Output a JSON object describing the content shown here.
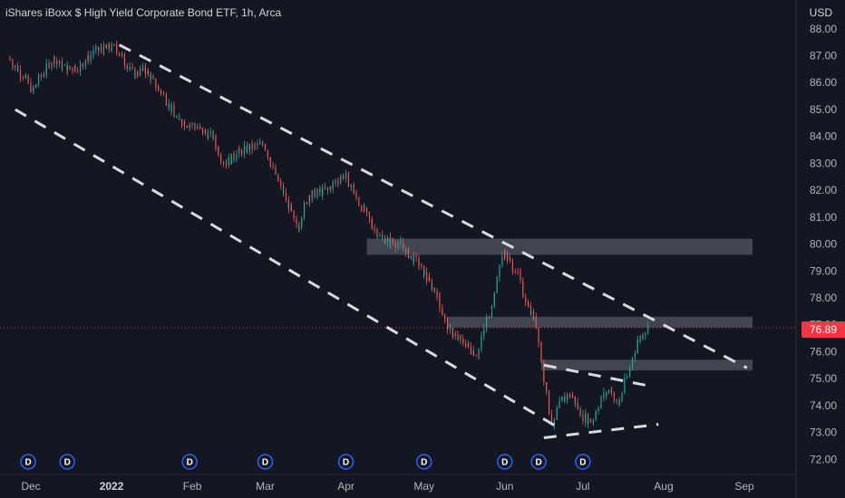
{
  "header": {
    "title": "iShares iBoxx $ High Yield Corporate Bond ETF, 1h, Arca",
    "currency": "USD"
  },
  "price_label": "76.89",
  "colors": {
    "background": "#131722",
    "up": "#26a69a",
    "down": "#ef5350",
    "zone": "#4a4d58",
    "trendline": "#d9dadf",
    "dividend": "#2962ff",
    "last_price": "#f23645"
  },
  "chart_data": {
    "type": "candlestick",
    "y_axis": {
      "range": [
        71.6,
        88.4
      ],
      "ticks": [
        "72.00",
        "73.00",
        "74.00",
        "75.00",
        "76.00",
        "77.00",
        "78.00",
        "79.00",
        "80.00",
        "81.00",
        "82.00",
        "83.00",
        "84.00",
        "85.00",
        "86.00",
        "87.00",
        "88.00"
      ]
    },
    "x_axis": {
      "ticks": [
        {
          "label": "Dec",
          "date": "2021-12-01",
          "bold": false
        },
        {
          "label": "2022",
          "date": "2022-01-01",
          "bold": true
        },
        {
          "label": "Feb",
          "date": "2022-02-01",
          "bold": false
        },
        {
          "label": "Mar",
          "date": "2022-03-01",
          "bold": false
        },
        {
          "label": "Apr",
          "date": "2022-04-01",
          "bold": false
        },
        {
          "label": "May",
          "date": "2022-05-01",
          "bold": false
        },
        {
          "label": "Jun",
          "date": "2022-06-01",
          "bold": false
        },
        {
          "label": "Jul",
          "date": "2022-07-01",
          "bold": false
        },
        {
          "label": "Aug",
          "date": "2022-08-01",
          "bold": false
        },
        {
          "label": "Sep",
          "date": "2022-09-01",
          "bold": false
        }
      ]
    },
    "last_price": 76.89,
    "price_path": [
      [
        "2021-11-23",
        86.9
      ],
      [
        "2021-11-29",
        86.2
      ],
      [
        "2021-12-02",
        85.7
      ],
      [
        "2021-12-06",
        86.3
      ],
      [
        "2021-12-10",
        86.9
      ],
      [
        "2021-12-15",
        86.5
      ],
      [
        "2021-12-20",
        86.6
      ],
      [
        "2021-12-27",
        87.2
      ],
      [
        "2022-01-03",
        87.3
      ],
      [
        "2022-01-10",
        86.3
      ],
      [
        "2022-01-14",
        86.5
      ],
      [
        "2022-01-21",
        85.6
      ],
      [
        "2022-01-27",
        84.6
      ],
      [
        "2022-02-02",
        84.4
      ],
      [
        "2022-02-09",
        84.0
      ],
      [
        "2022-02-14",
        83.0
      ],
      [
        "2022-02-21",
        83.5
      ],
      [
        "2022-03-01",
        83.7
      ],
      [
        "2022-03-07",
        82.2
      ],
      [
        "2022-03-14",
        80.6
      ],
      [
        "2022-03-18",
        81.8
      ],
      [
        "2022-03-25",
        82.0
      ],
      [
        "2022-04-01",
        82.6
      ],
      [
        "2022-04-08",
        81.3
      ],
      [
        "2022-04-15",
        80.2
      ],
      [
        "2022-04-22",
        80.0
      ],
      [
        "2022-04-29",
        79.3
      ],
      [
        "2022-05-06",
        78.2
      ],
      [
        "2022-05-11",
        76.8
      ],
      [
        "2022-05-17",
        76.3
      ],
      [
        "2022-05-22",
        75.9
      ],
      [
        "2022-05-27",
        77.6
      ],
      [
        "2022-06-01",
        79.7
      ],
      [
        "2022-06-06",
        79.0
      ],
      [
        "2022-06-10",
        77.8
      ],
      [
        "2022-06-14",
        76.9
      ],
      [
        "2022-06-16",
        75.3
      ],
      [
        "2022-06-20",
        73.2
      ],
      [
        "2022-06-23",
        74.2
      ],
      [
        "2022-06-27",
        74.4
      ],
      [
        "2022-07-01",
        73.6
      ],
      [
        "2022-07-05",
        73.4
      ],
      [
        "2022-07-08",
        74.2
      ],
      [
        "2022-07-12",
        74.6
      ],
      [
        "2022-07-15",
        74.0
      ],
      [
        "2022-07-19",
        75.2
      ],
      [
        "2022-07-22",
        76.3
      ],
      [
        "2022-07-26",
        76.89
      ]
    ],
    "zones": [
      {
        "from": "2022-04-09",
        "to": "2022-09-05",
        "low": 79.6,
        "high": 80.2
      },
      {
        "from": "2022-05-10",
        "to": "2022-09-05",
        "low": 76.9,
        "high": 77.3
      },
      {
        "from": "2022-06-15",
        "to": "2022-09-06",
        "low": 75.3,
        "high": 75.7
      }
    ],
    "trendlines": [
      {
        "from": [
          "2022-01-04",
          87.4
        ],
        "to": [
          "2022-09-02",
          75.4
        ]
      },
      {
        "from": [
          "2021-11-25",
          85.0
        ],
        "to": [
          "2022-06-23",
          73.1
        ]
      },
      {
        "from": [
          "2022-06-16",
          75.5
        ],
        "to": [
          "2022-07-28",
          74.7
        ]
      },
      {
        "from": [
          "2022-06-16",
          72.8
        ],
        "to": [
          "2022-07-30",
          73.3
        ]
      }
    ],
    "dividends": [
      {
        "date": "2021-11-30",
        "label": "D"
      },
      {
        "date": "2021-12-15",
        "label": "D"
      },
      {
        "date": "2022-01-31",
        "label": "D"
      },
      {
        "date": "2022-03-01",
        "label": "D"
      },
      {
        "date": "2022-04-01",
        "label": "D"
      },
      {
        "date": "2022-05-01",
        "label": "D"
      },
      {
        "date": "2022-06-01",
        "label": "D"
      },
      {
        "date": "2022-06-14",
        "label": "D"
      },
      {
        "date": "2022-07-01",
        "label": "D"
      }
    ]
  }
}
